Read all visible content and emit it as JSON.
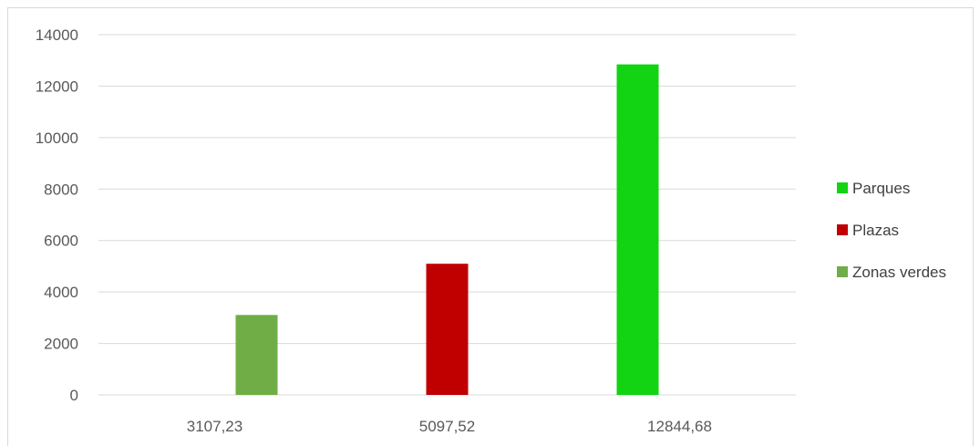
{
  "chart_data": {
    "type": "bar",
    "categories": [
      "3107,23",
      "5097,52",
      "12844,68"
    ],
    "series": [
      {
        "name": "Parques",
        "color": "#12d412",
        "values": [
          0,
          0,
          12844.68
        ]
      },
      {
        "name": "Plazas",
        "color": "#c00000",
        "values": [
          0,
          5097.52,
          0
        ]
      },
      {
        "name": "Zonas verdes",
        "color": "#70ad47",
        "values": [
          3107.23,
          0,
          0
        ]
      }
    ],
    "ylim": [
      0,
      14000
    ],
    "yticks": [
      "0",
      "2000",
      "4000",
      "6000",
      "8000",
      "10000",
      "12000",
      "14000"
    ],
    "grid": true,
    "legend_position": "right"
  }
}
